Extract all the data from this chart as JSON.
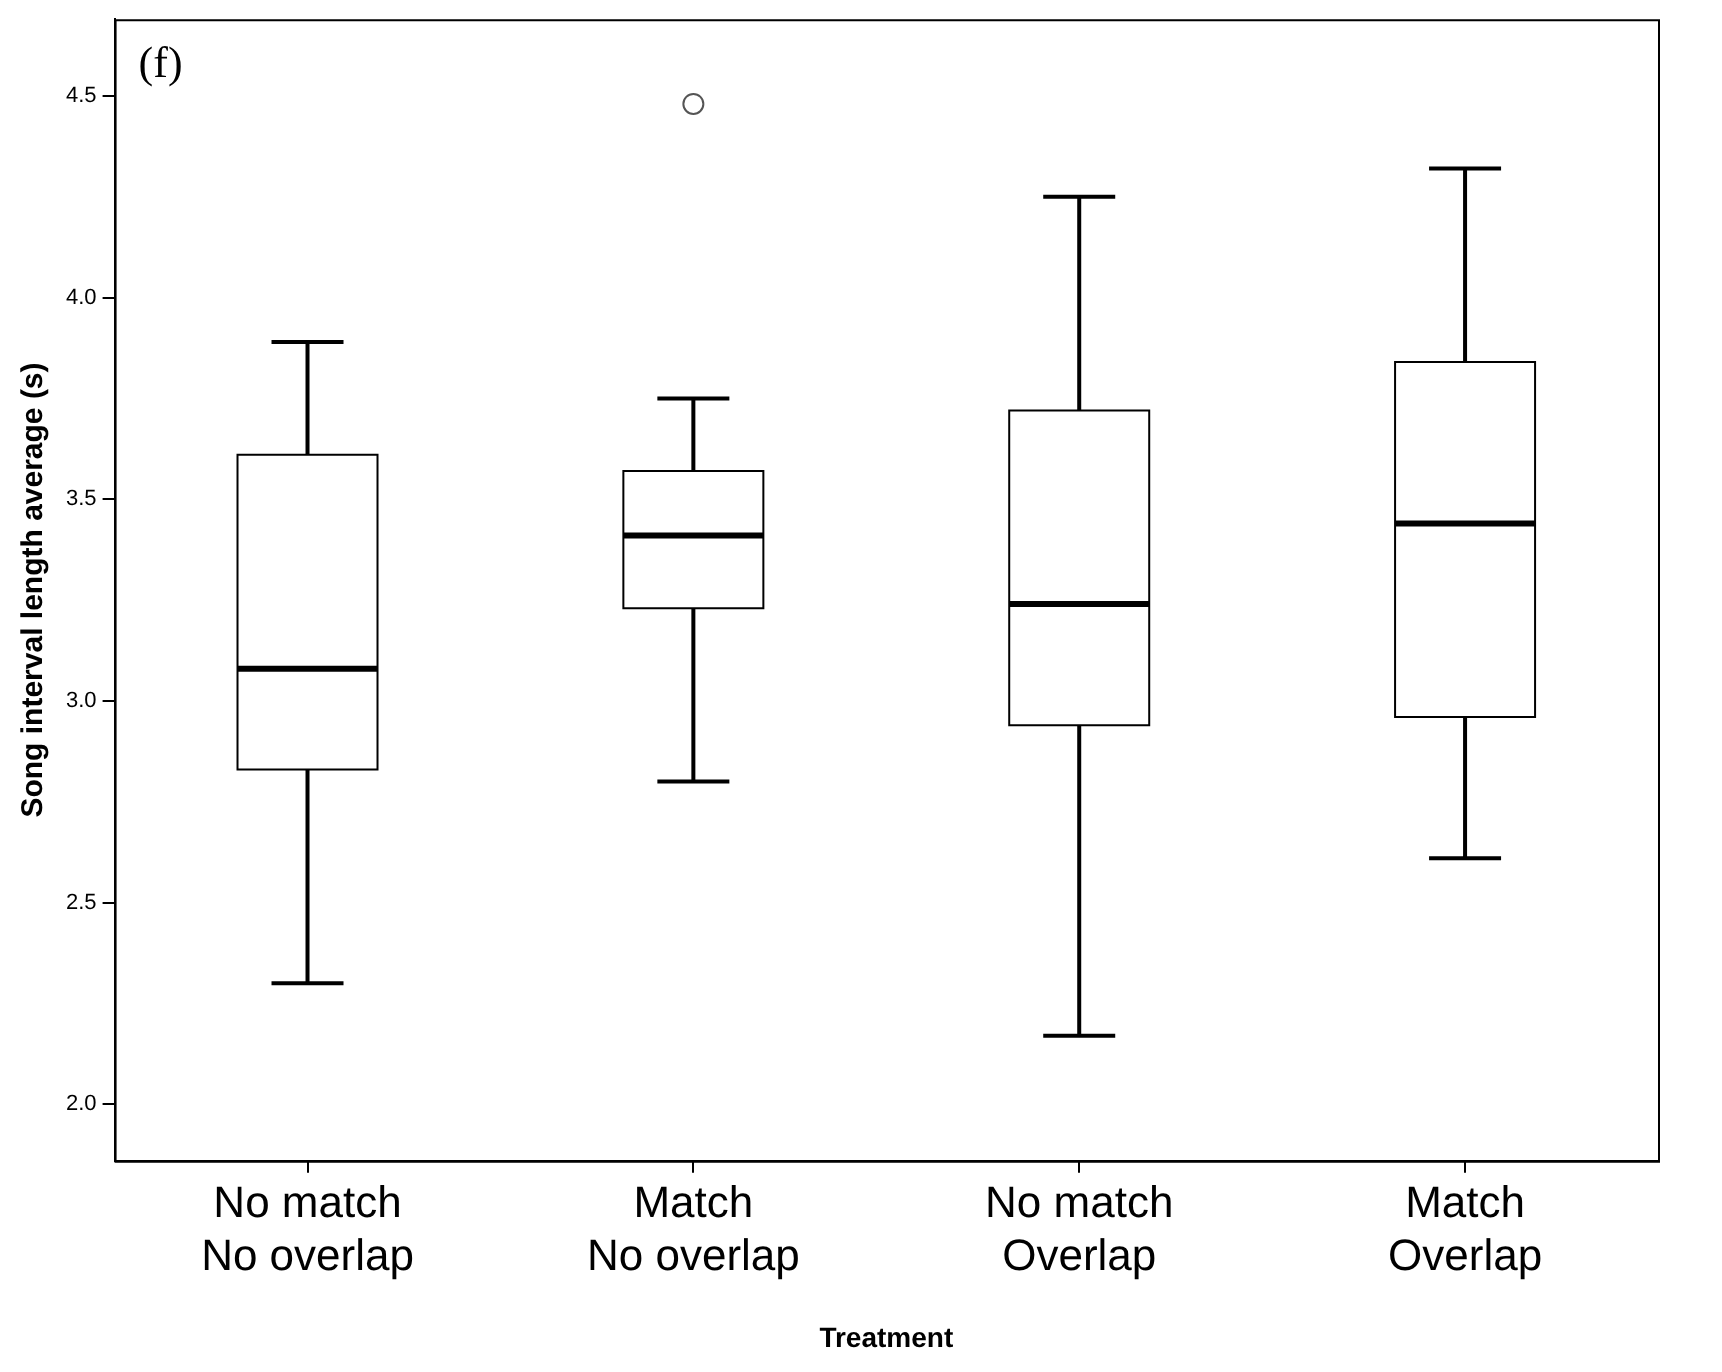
{
  "chart_data": {
    "type": "box",
    "xlabel": "Treatment",
    "ylabel": "Song interval length average (s)",
    "annotations": [
      "(f)"
    ],
    "categories": [
      "No match\nNo overlap",
      "Match\nNo overlap",
      "No match\nOverlap",
      "Match\nOverlap"
    ],
    "ylim": [
      1.86,
      4.69
    ],
    "yticks": [
      {
        "value": 2,
        "label": "2.0"
      },
      2.5,
      {
        "value": 3,
        "label": "3.0"
      },
      3.5,
      {
        "value": 4,
        "label": "4.0"
      },
      4.5
    ],
    "boxes": [
      {
        "low": 2.3,
        "q1": 2.83,
        "median": 3.08,
        "q3": 3.61,
        "high": 3.89
      },
      {
        "low": 2.8,
        "q1": 3.23,
        "median": 3.41,
        "q3": 3.57,
        "high": 3.75,
        "outliers": [
          4.48
        ]
      },
      {
        "low": 2.17,
        "q1": 2.94,
        "median": 3.24,
        "q3": 3.72,
        "high": 4.25
      },
      {
        "low": 2.61,
        "q1": 2.96,
        "median": 3.44,
        "q3": 3.84,
        "high": 4.32
      }
    ]
  }
}
